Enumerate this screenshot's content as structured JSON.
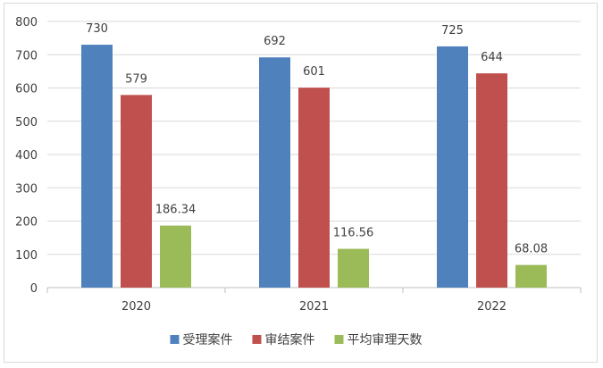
{
  "chart_data": {
    "type": "bar",
    "categories": [
      "2020",
      "2021",
      "2022"
    ],
    "series": [
      {
        "name": "受理案件",
        "color": "#4f81bd",
        "values": [
          730,
          692,
          725
        ],
        "labels": [
          "730",
          "692",
          "725"
        ]
      },
      {
        "name": "审结案件",
        "color": "#c0504d",
        "values": [
          579,
          601,
          644
        ],
        "labels": [
          "579",
          "601",
          "644"
        ]
      },
      {
        "name": "平均审理天数",
        "color": "#9bbb59",
        "values": [
          186.34,
          116.56,
          68.08
        ],
        "labels": [
          "186.34",
          "116.56",
          "68.08"
        ]
      }
    ],
    "ylim": [
      0,
      800
    ],
    "yticks": [
      "0",
      "100",
      "200",
      "300",
      "400",
      "500",
      "600",
      "700",
      "800"
    ],
    "grid": true,
    "legend_position": "bottom"
  }
}
